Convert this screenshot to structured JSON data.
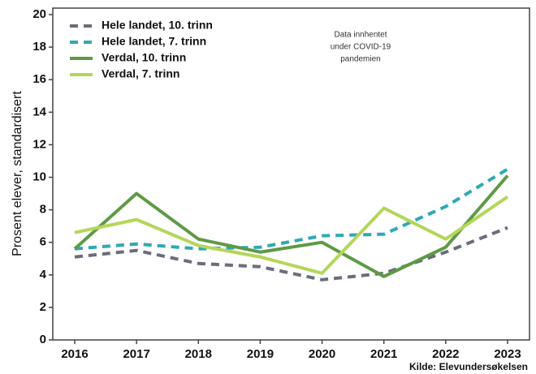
{
  "chart_data": {
    "type": "line",
    "y_label": "Prosent elever, standardisert",
    "annotation": [
      "Data innhentet",
      "under COVID-19",
      "pandemien"
    ],
    "source": "Kilde: Elevundersøkelsen",
    "categories": [
      "2016",
      "2017",
      "2018",
      "2019",
      "2020",
      "2021",
      "2022",
      "2023"
    ],
    "series": [
      {
        "name": "Hele landet, 10. trinn",
        "color": "#6b6d7a",
        "dashed": true,
        "values": [
          5.1,
          5.5,
          4.7,
          4.5,
          3.7,
          4.1,
          5.4,
          6.9
        ]
      },
      {
        "name": "Hele landet, 7. trinn",
        "color": "#2fa8b4",
        "dashed": true,
        "values": [
          5.6,
          5.9,
          5.6,
          5.7,
          6.4,
          6.5,
          8.2,
          10.5
        ]
      },
      {
        "name": "Verdal, 10. trinn",
        "color": "#5e9a45",
        "dashed": false,
        "values": [
          5.6,
          9.0,
          6.2,
          5.4,
          6.0,
          3.9,
          5.7,
          10.1
        ]
      },
      {
        "name": "Verdal, 7. trinn",
        "color": "#b4d65a",
        "dashed": false,
        "values": [
          6.6,
          7.4,
          5.8,
          5.1,
          4.1,
          8.1,
          6.2,
          8.8
        ]
      }
    ],
    "ylim": [
      0,
      20
    ],
    "yticks": [
      0,
      2,
      4,
      6,
      8,
      10,
      12,
      14,
      16,
      18,
      20
    ]
  }
}
